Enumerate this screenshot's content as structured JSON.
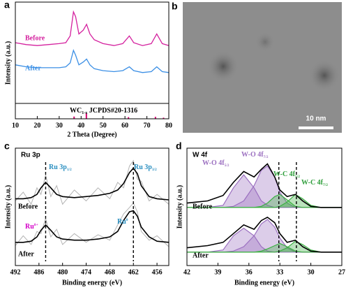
{
  "chart_data": [
    {
      "type": "xrd",
      "panel_label": "a",
      "xlabel": "2 Theta (Degree)",
      "ylabel": "Intensity (a.u.)",
      "xlim": [
        10,
        80
      ],
      "xticks": [
        10,
        20,
        30,
        40,
        50,
        60,
        70,
        80
      ],
      "ylim": [
        0,
        100
      ],
      "x": [
        10,
        15,
        20,
        25,
        30,
        33,
        35,
        36.5,
        37.5,
        39,
        41,
        42.5,
        44,
        46,
        50,
        55,
        59,
        62,
        64,
        68,
        72,
        74.5,
        77,
        80
      ],
      "series": [
        {
          "name": "Before",
          "color": "#d4209e",
          "values": [
            63,
            61,
            60,
            61,
            62,
            63,
            70,
            95,
            90,
            72,
            76,
            82,
            72,
            66,
            62,
            60,
            62,
            70,
            63,
            60,
            62,
            72,
            62,
            60
          ]
        },
        {
          "name": "After",
          "color": "#3b8fe5",
          "values": [
            40,
            38,
            37,
            37,
            37,
            38,
            42,
            55,
            50,
            40,
            43,
            46,
            40,
            36,
            34,
            33,
            34,
            38,
            34,
            32,
            33,
            38,
            33,
            32
          ]
        }
      ],
      "reference": {
        "name": "WC",
        "sub": "1-x",
        "suffix": " JCPDS#20-1316",
        "color": "#d6006e",
        "x": [
          36.8,
          42.4,
          61.6,
          73.9,
          77.6
        ],
        "values": [
          40,
          100,
          30,
          35,
          20
        ]
      }
    },
    {
      "type": "image",
      "panel_label": "b",
      "scale_bar": "10 nm"
    },
    {
      "type": "xps",
      "panel_label": "c",
      "title": "Ru 3p",
      "xlabel": "Binding energy (eV)",
      "ylabel": "Intensity (a.u.)",
      "xlim": [
        492,
        453
      ],
      "xticks": [
        492,
        486,
        480,
        474,
        468,
        462,
        456
      ],
      "ylim": [
        0,
        100
      ],
      "x": [
        492,
        490,
        488,
        486.5,
        485.5,
        484.3,
        483,
        481.5,
        480,
        477,
        474,
        471,
        468,
        466,
        464.5,
        463,
        462,
        461,
        460,
        458,
        456,
        453
      ],
      "raw_color": "#b4b4b4",
      "fit_color": "#000000",
      "series": [
        {
          "name": "Before",
          "raw": [
            58,
            66,
            55,
            70,
            64,
            82,
            62,
            72,
            55,
            68,
            58,
            70,
            60,
            75,
            70,
            90,
            95,
            78,
            76,
            58,
            64,
            55
          ],
          "values": [
            60,
            60,
            61,
            64,
            70,
            75,
            70,
            64,
            62,
            61,
            62,
            63,
            65,
            68,
            74,
            84,
            88,
            83,
            72,
            62,
            60,
            59
          ]
        },
        {
          "name": "After",
          "raw": [
            17,
            26,
            18,
            30,
            28,
            42,
            25,
            32,
            18,
            28,
            20,
            27,
            22,
            36,
            46,
            52,
            56,
            48,
            30,
            22,
            26,
            16
          ],
          "values": [
            20,
            20,
            21,
            25,
            31,
            36,
            31,
            25,
            23,
            22,
            22,
            23,
            25,
            30,
            40,
            48,
            49,
            44,
            34,
            25,
            21,
            20
          ]
        }
      ],
      "dashed_x": [
        484.3,
        462
      ],
      "annotations": [
        {
          "text": "Ru 3p",
          "sub": "1/2",
          "color": "#2a8fc0"
        },
        {
          "text": "Ru 3p",
          "sub": "3/2",
          "color": "#2a8fc0"
        },
        {
          "text": "Ru",
          "sup": "δ+",
          "color": "#d400c8"
        },
        {
          "text": "Ru",
          "sup": "0",
          "color": "#2a8fc0"
        }
      ]
    },
    {
      "type": "xps",
      "panel_label": "d",
      "title": "W 4f",
      "xlabel": "Binding energy (eV)",
      "ylabel": "Intensity (a.u.)",
      "xlim": [
        42,
        27
      ],
      "xticks": [
        42,
        39,
        36,
        33,
        30,
        27
      ],
      "ylim": [
        0,
        100
      ],
      "x": [
        42,
        40,
        38.5,
        37.5,
        36.5,
        35.5,
        34.8,
        34.2,
        33.5,
        33,
        32.3,
        31.5,
        30.8,
        30,
        29,
        27
      ],
      "fit_color": "#000000",
      "component_colors": [
        "#9b6fc0",
        "#9b6fc0",
        "#3cb043",
        "#3cb043"
      ],
      "series": [
        {
          "name": "Before",
          "values": [
            56,
            58,
            63,
            75,
            85,
            80,
            87,
            92,
            80,
            68,
            62,
            64,
            58,
            53,
            52,
            52
          ],
          "components": [
            [
              52,
              52,
              54,
              70,
              82,
              70,
              58,
              54,
              52,
              52,
              52,
              52,
              52,
              52,
              52,
              52
            ],
            [
              52,
              52,
              52,
              53,
              58,
              72,
              86,
              90,
              80,
              66,
              56,
              52,
              52,
              52,
              52,
              52
            ],
            [
              52,
              52,
              52,
              52,
              52,
              52,
              53,
              56,
              62,
              64,
              59,
              53,
              52,
              52,
              52,
              52
            ],
            [
              52,
              52,
              52,
              52,
              52,
              52,
              52,
              52,
              52,
              53,
              57,
              64,
              60,
              54,
              52,
              52
            ]
          ]
        },
        {
          "name": "After",
          "values": [
            15,
            17,
            20,
            28,
            36,
            32,
            40,
            43,
            38,
            28,
            20,
            22,
            16,
            12,
            11,
            11
          ],
          "components": [
            [
              11,
              11,
              13,
              26,
              33,
              26,
              16,
              12,
              11,
              11,
              11,
              11,
              11,
              11,
              11,
              11
            ],
            [
              11,
              11,
              11,
              12,
              16,
              26,
              37,
              41,
              34,
              24,
              15,
              11,
              11,
              11,
              11,
              11
            ],
            [
              11,
              11,
              11,
              11,
              11,
              11,
              12,
              14,
              17,
              19,
              16,
              12,
              11,
              11,
              11,
              11
            ],
            [
              11,
              11,
              11,
              11,
              11,
              11,
              11,
              11,
              11,
              12,
              15,
              21,
              18,
              13,
              11,
              11
            ]
          ]
        }
      ],
      "dashed_x": [
        33.1,
        31.4
      ],
      "annotations": [
        {
          "text": "W-O 4f",
          "sub": "5/2",
          "color": "#9b6fc0"
        },
        {
          "text": "W-O 4f",
          "sub": "7/2",
          "color": "#9b6fc0"
        },
        {
          "text": "W-C 4f",
          "sub": "5/2",
          "color": "#2e9e3a"
        },
        {
          "text": "W-C 4f",
          "sub": "7/2",
          "color": "#2e9e3a"
        }
      ]
    }
  ]
}
